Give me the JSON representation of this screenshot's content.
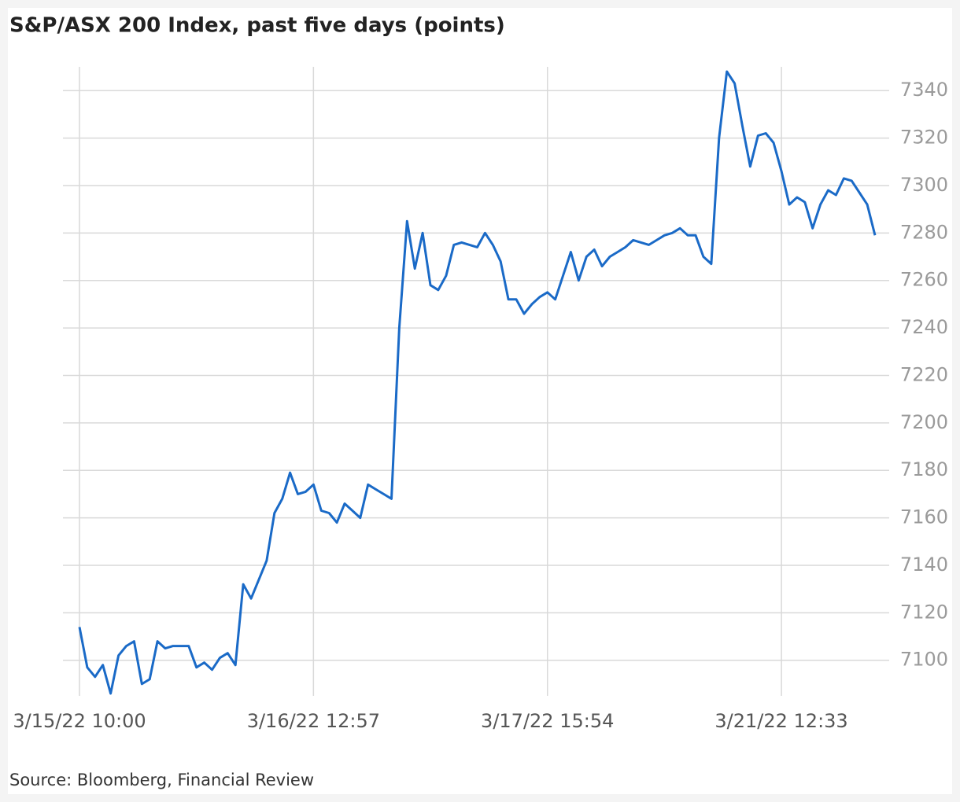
{
  "chart_data": {
    "type": "line",
    "title": "S&P/ASX 200 Index, past five days (points)",
    "source": "Source: Bloomberg, Financial Review",
    "categories": [
      "3/15/22 10:00",
      null,
      null,
      null,
      null,
      null,
      null,
      null,
      null,
      null,
      null,
      null,
      null,
      null,
      null,
      null,
      null,
      null,
      null,
      null,
      null,
      null,
      null,
      null,
      null,
      null,
      null,
      null,
      null,
      null,
      "3/16/22 12:57",
      null,
      null,
      null,
      null,
      null,
      null,
      null,
      null,
      null,
      null,
      null,
      null,
      null,
      null,
      null,
      null,
      null,
      null,
      null,
      null,
      null,
      null,
      null,
      null,
      null,
      null,
      null,
      null,
      null,
      "3/17/22 15:54",
      null,
      null,
      null,
      null,
      null,
      null,
      null,
      null,
      null,
      null,
      null,
      null,
      null,
      null,
      null,
      null,
      null,
      null,
      null,
      null,
      null,
      null,
      null,
      null,
      null,
      null,
      null,
      null,
      null,
      "3/21/22 12:33",
      null,
      null,
      null,
      null,
      null,
      null,
      null,
      null,
      null,
      null,
      null,
      null
    ],
    "values": [
      7114,
      7097,
      7093,
      7098,
      7086,
      7102,
      7106,
      7108,
      7090,
      7092,
      7108,
      7105,
      7106,
      7106,
      7106,
      7097,
      7099,
      7096,
      7101,
      7103,
      7098,
      7132,
      7126,
      7134,
      7142,
      7162,
      7168,
      7179,
      7170,
      7171,
      7174,
      7163,
      7162,
      7158,
      7166,
      7163,
      7160,
      7174,
      7172,
      7170,
      7168,
      7240,
      7285,
      7265,
      7280,
      7258,
      7256,
      7262,
      7275,
      7276,
      7275,
      7274,
      7280,
      7275,
      7268,
      7252,
      7252,
      7246,
      7250,
      7253,
      7255,
      7252,
      7262,
      7272,
      7260,
      7270,
      7273,
      7266,
      7270,
      7272,
      7274,
      7277,
      7276,
      7275,
      7277,
      7279,
      7280,
      7282,
      7279,
      7279,
      7270,
      7267,
      7320,
      7348,
      7343,
      7325,
      7308,
      7321,
      7322,
      7318,
      7306,
      7292,
      7295,
      7293,
      7282,
      7292,
      7298,
      7296,
      7303,
      7302,
      7297,
      7292,
      7279
    ],
    "color": "#1a6ac7",
    "ylim": [
      7085,
      7350
    ],
    "yticks": [
      7100,
      7120,
      7140,
      7160,
      7180,
      7200,
      7220,
      7240,
      7260,
      7280,
      7300,
      7320,
      7340
    ],
    "grid": true
  }
}
